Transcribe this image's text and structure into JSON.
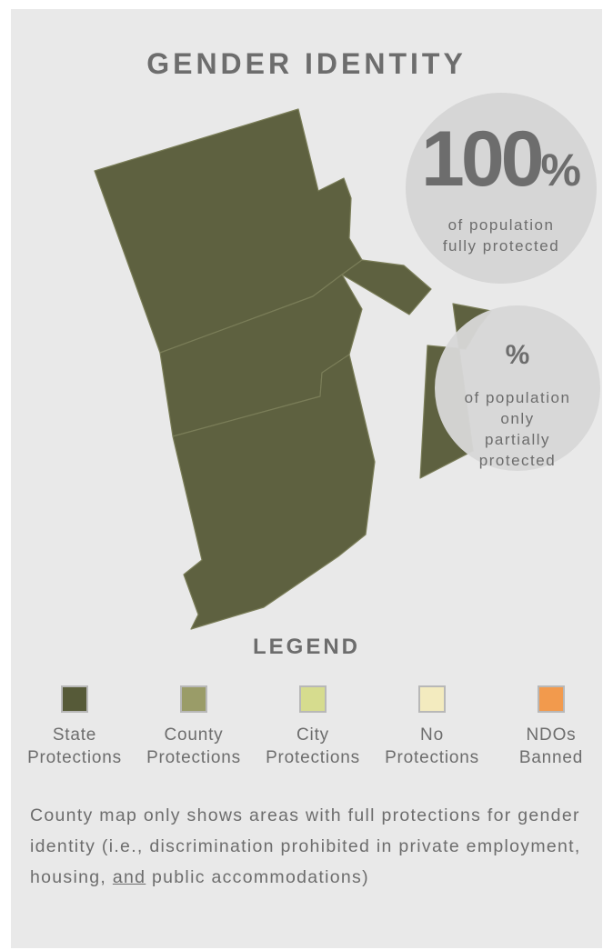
{
  "title": "GENDER IDENTITY",
  "stat_full": {
    "value": "100",
    "percent_sign": "%",
    "label_line1": "of population",
    "label_line2": "fully protected"
  },
  "stat_partial": {
    "value": "%",
    "label_line1": "of population",
    "label_line2": "only",
    "label_line3": "partially",
    "label_line4": "protected"
  },
  "map": {
    "fill_color": "#5e6140",
    "county_border_color": "#7a7d58",
    "region_status": "State Protections"
  },
  "legend": {
    "title": "LEGEND",
    "items": [
      {
        "line1": "State",
        "line2": "Protections",
        "color": "#565a38"
      },
      {
        "line1": "County",
        "line2": "Protections",
        "color": "#9a9c68"
      },
      {
        "line1": "City",
        "line2": "Protections",
        "color": "#d6dc8e"
      },
      {
        "line1": "No",
        "line2": "Protections",
        "color": "#f3ebbf"
      },
      {
        "line1": "NDOs",
        "line2": "Banned",
        "color": "#f29a4d"
      }
    ]
  },
  "note": {
    "before": "County map only shows areas with full protections for gender identity (i.e., discrimination prohibited in private employment, housing, ",
    "underlined": "and",
    "after": " public accommodations)"
  }
}
